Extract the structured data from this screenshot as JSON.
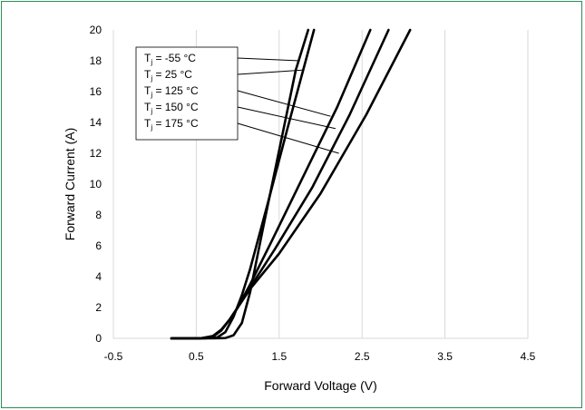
{
  "chart_data": {
    "type": "line",
    "title": "",
    "xlabel": "Forward Voltage (V)",
    "ylabel": "Forward Current (A)",
    "xlim": [
      -0.5,
      4.5
    ],
    "ylim": [
      0,
      20
    ],
    "xticks": [
      "-0.5",
      "0.5",
      "1.5",
      "2.5",
      "3.5",
      "4.5"
    ],
    "yticks": [
      "0",
      "2",
      "4",
      "6",
      "8",
      "10",
      "12",
      "14",
      "16",
      "18",
      "20"
    ],
    "xtick_values": [
      -0.5,
      0.5,
      1.5,
      2.5,
      3.5,
      4.5
    ],
    "ytick_values": [
      0,
      2,
      4,
      6,
      8,
      10,
      12,
      14,
      16,
      18,
      20
    ],
    "grid": "vertical",
    "series": [
      {
        "name": "Tj = -55 °C",
        "label_prefix": "T",
        "label_sub": "j",
        "label_suffix": " = -55 °C",
        "x": [
          0.2,
          0.7,
          0.85,
          0.95,
          1.05,
          1.15,
          1.3,
          1.5,
          1.7,
          1.85
        ],
        "y": [
          0.0,
          0.0,
          0.02,
          0.2,
          1.0,
          3.0,
          7.0,
          12.2,
          17.4,
          20.0
        ]
      },
      {
        "name": "Tj = 25 °C",
        "label_prefix": "T",
        "label_sub": "j",
        "label_suffix": " =  25 °C",
        "x": [
          0.2,
          0.6,
          0.75,
          0.85,
          0.95,
          1.05,
          1.15,
          1.35,
          1.6,
          1.92
        ],
        "y": [
          0.0,
          0.0,
          0.05,
          0.4,
          1.4,
          2.8,
          4.5,
          8.5,
          13.6,
          20.0
        ]
      },
      {
        "name": "Tj = 125 °C",
        "label_prefix": "T",
        "label_sub": "j",
        "label_suffix": " = 125 °C",
        "x": [
          0.2,
          0.55,
          0.7,
          0.8,
          0.9,
          1.0,
          1.15,
          1.4,
          1.8,
          2.2,
          2.6
        ],
        "y": [
          0.0,
          0.0,
          0.1,
          0.5,
          1.2,
          2.0,
          3.5,
          6.2,
          10.6,
          15.0,
          20.0
        ]
      },
      {
        "name": "Tj = 150 °C",
        "label_prefix": "T",
        "label_sub": "j",
        "label_suffix": " = 150 °C",
        "x": [
          0.2,
          0.55,
          0.7,
          0.8,
          0.9,
          1.0,
          1.15,
          1.45,
          1.9,
          2.35,
          2.82
        ],
        "y": [
          0.0,
          0.0,
          0.12,
          0.5,
          1.2,
          2.0,
          3.3,
          5.8,
          9.8,
          14.5,
          20.0
        ]
      },
      {
        "name": "Tj = 175 °C",
        "label_prefix": "T",
        "label_sub": "j",
        "label_suffix": " = 175 °C",
        "x": [
          0.2,
          0.55,
          0.7,
          0.8,
          0.9,
          1.0,
          1.15,
          1.5,
          2.0,
          2.55,
          3.08
        ],
        "y": [
          0.0,
          0.0,
          0.15,
          0.55,
          1.2,
          2.0,
          3.2,
          5.5,
          9.4,
          14.5,
          20.0
        ]
      }
    ],
    "annotations": [
      {
        "series": 0,
        "x": 1.75,
        "y": 18.0
      },
      {
        "series": 1,
        "x": 1.78,
        "y": 17.4
      },
      {
        "series": 2,
        "x": 2.12,
        "y": 14.4
      },
      {
        "series": 3,
        "x": 2.18,
        "y": 13.6
      },
      {
        "series": 4,
        "x": 2.22,
        "y": 12.0
      }
    ],
    "colors": {
      "lines": "#000000",
      "grid": "#d9d9d9",
      "frame": "#2e8b57"
    }
  }
}
